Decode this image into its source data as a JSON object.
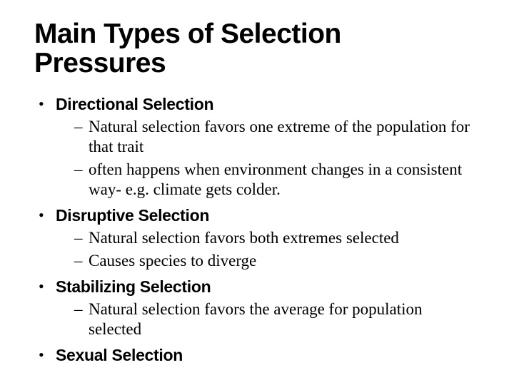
{
  "slide": {
    "title": "Main Types of Selection Pressures",
    "items": [
      {
        "label": "Directional Selection",
        "sub": [
          "Natural selection favors one extreme of the population for that trait",
          "often happens when environment changes in a consistent way-  e.g. climate gets colder."
        ]
      },
      {
        "label": "Disruptive Selection",
        "sub": [
          "Natural selection favors both extremes selected",
          "Causes species to diverge"
        ]
      },
      {
        "label": "Stabilizing Selection",
        "sub": [
          "Natural selection favors the average for population selected"
        ]
      },
      {
        "label": "Sexual Selection",
        "sub": []
      }
    ]
  },
  "style": {
    "title_font": "Arial Black / condensed sans",
    "title_fontsize_pt": 39,
    "heading_fontsize_pt": 23,
    "body_font": "Times New Roman",
    "body_fontsize_pt": 23,
    "text_color": "#000000",
    "background_color": "#ffffff",
    "bullet_lvl1": "•",
    "bullet_lvl2": "–"
  }
}
